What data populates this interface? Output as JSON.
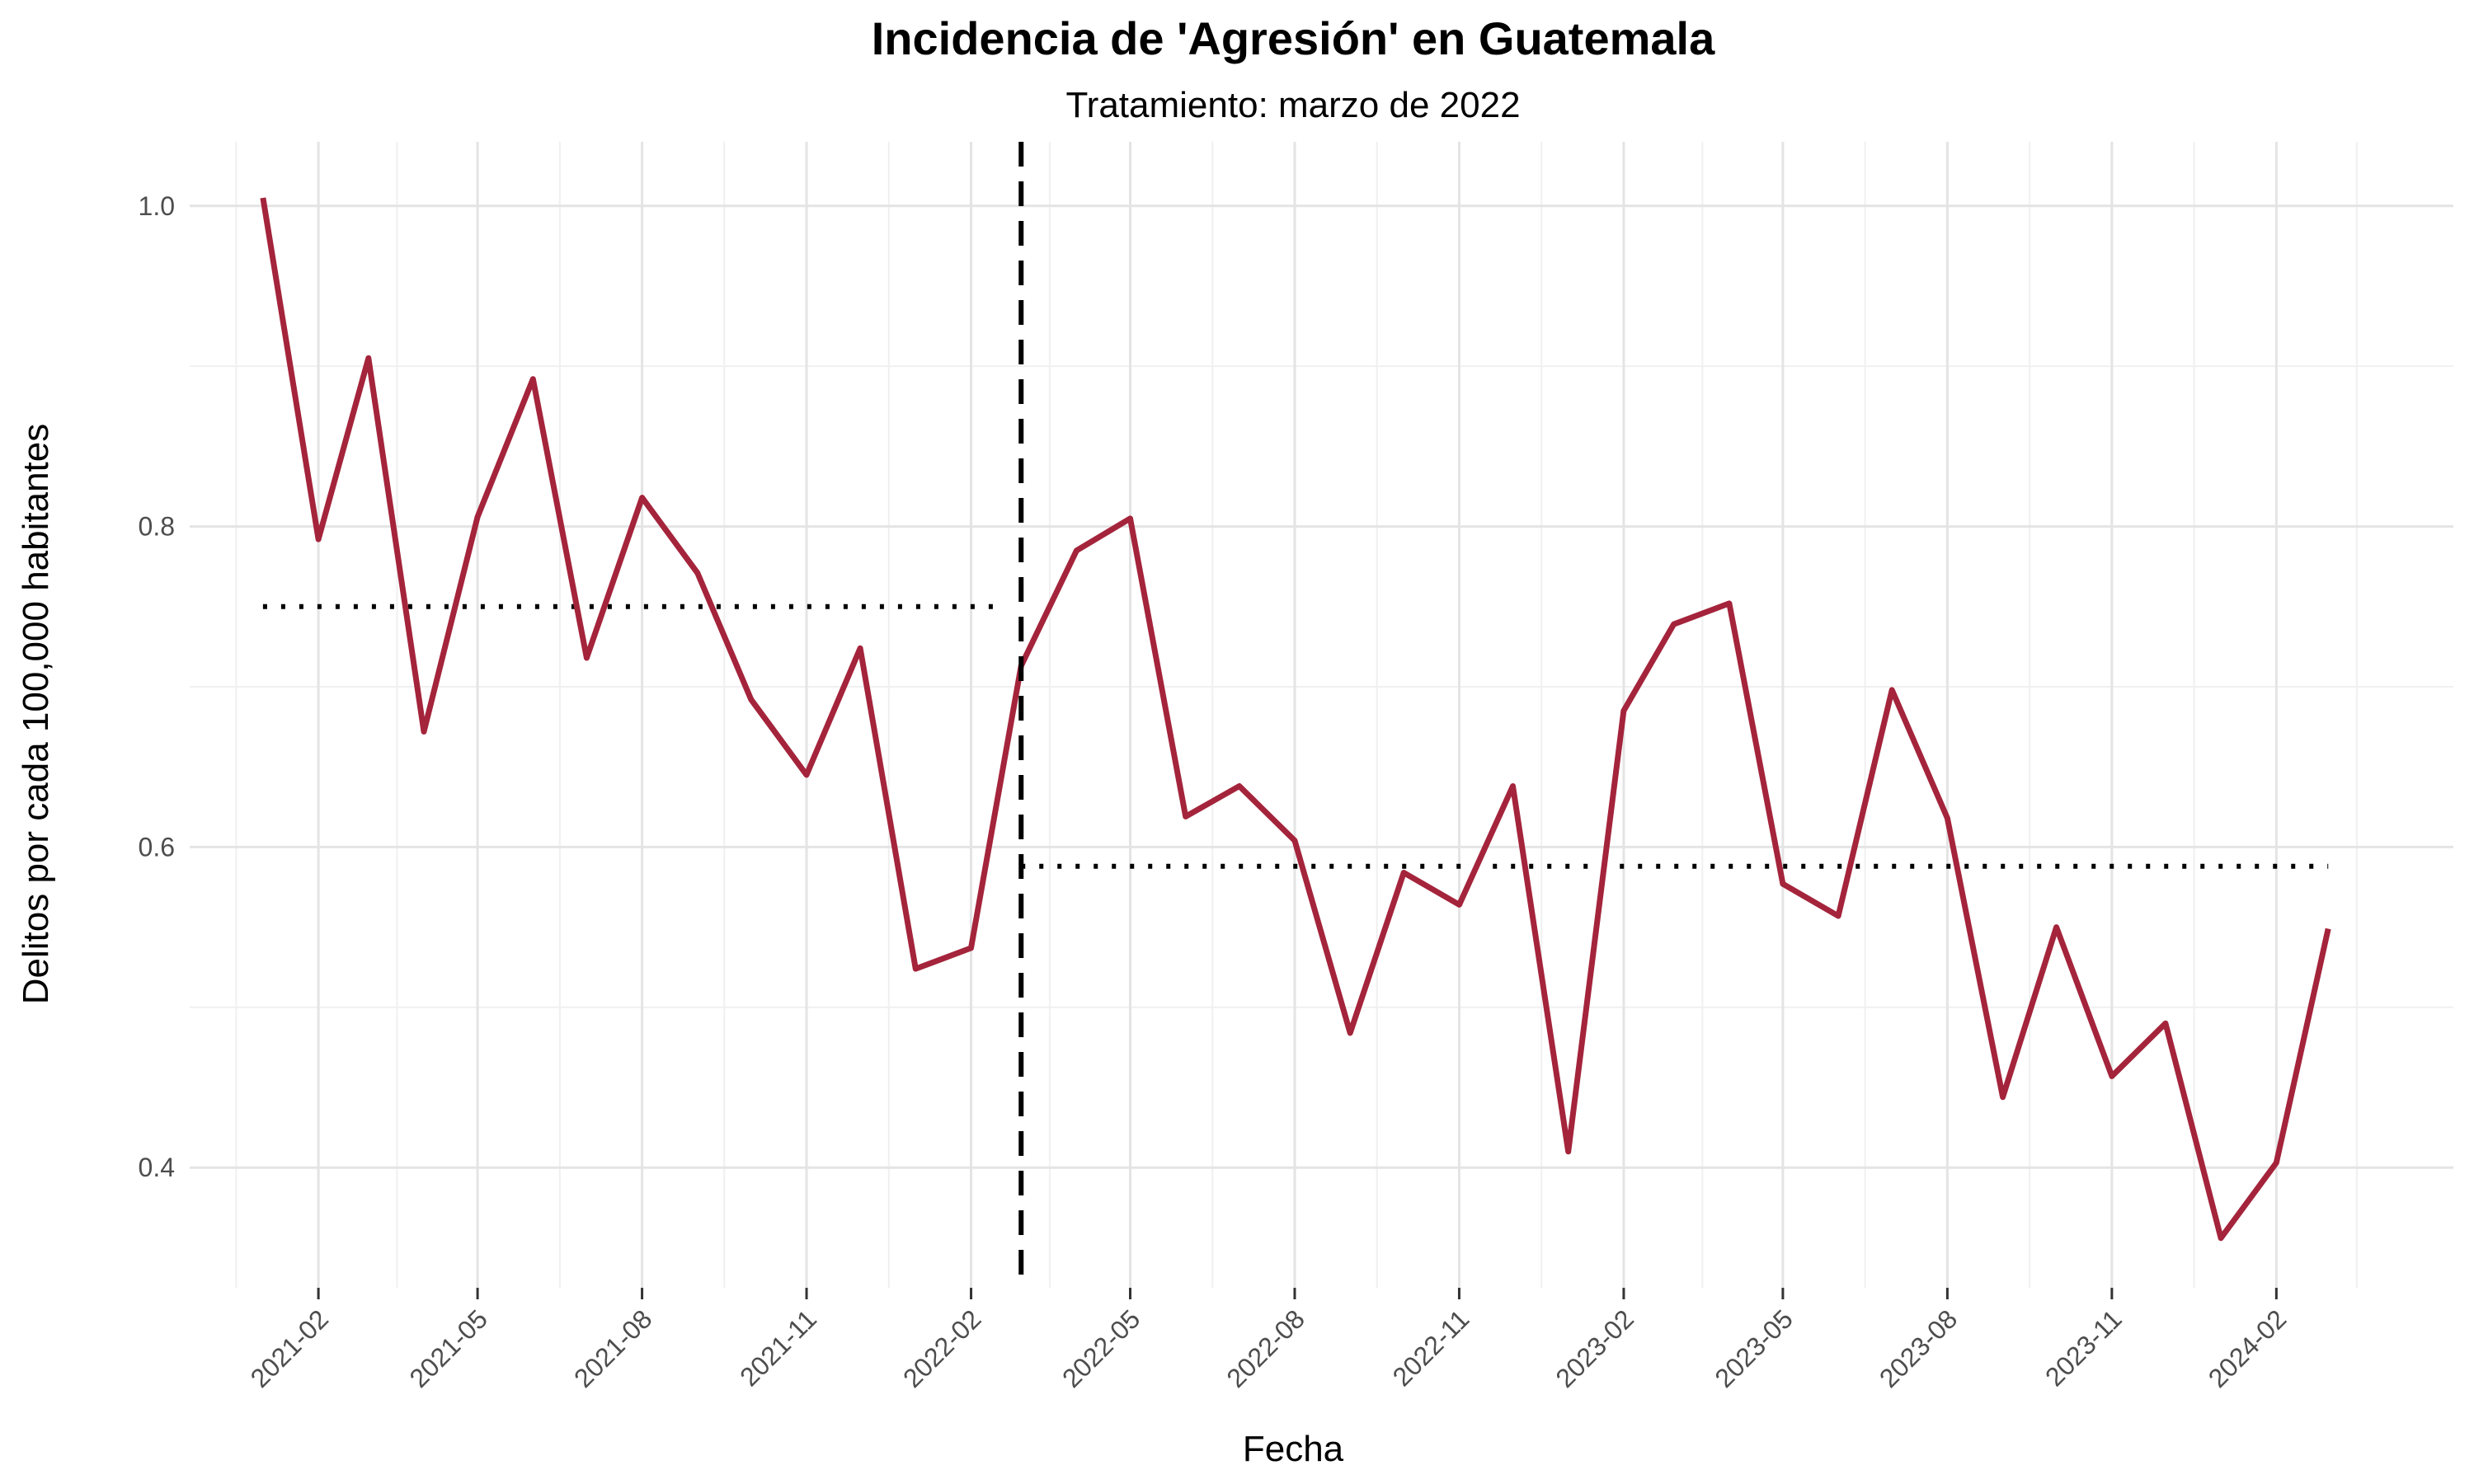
{
  "chart_data": {
    "type": "line",
    "title": "Incidencia de 'Agresión' en Guatemala",
    "subtitle": "Tratamiento: marzo de 2022",
    "xlabel": "Fecha",
    "ylabel": "Delitos por cada 100,000 habitantes",
    "x_tick_labels": [
      "2021-02",
      "2021-05",
      "2021-08",
      "2021-11",
      "2022-02",
      "2022-05",
      "2022-08",
      "2022-11",
      "2023-02",
      "2023-05",
      "2023-08",
      "2023-11",
      "2024-02"
    ],
    "y_tick_labels": [
      "0.4",
      "0.6",
      "0.8",
      "1.0"
    ],
    "ylim": [
      0.325,
      1.04
    ],
    "xlim": [
      "2020-11-21",
      "2024-05-10"
    ],
    "grid": true,
    "series": [
      {
        "color": "#a4243b",
        "x": [
          "2021-01-01",
          "2021-02-01",
          "2021-03-01",
          "2021-04-01",
          "2021-05-01",
          "2021-06-01",
          "2021-07-01",
          "2021-08-01",
          "2021-09-01",
          "2021-10-01",
          "2021-11-01",
          "2021-12-01",
          "2022-01-01",
          "2022-02-01",
          "2022-03-01",
          "2022-04-01",
          "2022-05-01",
          "2022-06-01",
          "2022-07-01",
          "2022-08-01",
          "2022-09-01",
          "2022-10-01",
          "2022-11-01",
          "2022-12-01",
          "2023-01-01",
          "2023-02-01",
          "2023-03-01",
          "2023-04-01",
          "2023-05-01",
          "2023-06-01",
          "2023-07-01",
          "2023-08-01",
          "2023-09-01",
          "2023-10-01",
          "2023-11-01",
          "2023-12-01",
          "2024-01-01",
          "2024-02-01",
          "2024-03-01"
        ],
        "values": [
          1.005,
          0.792,
          0.905,
          0.672,
          0.806,
          0.892,
          0.718,
          0.818,
          0.771,
          0.692,
          0.645,
          0.724,
          0.524,
          0.537,
          0.713,
          0.785,
          0.805,
          0.619,
          0.638,
          0.604,
          0.484,
          0.584,
          0.564,
          0.638,
          0.41,
          0.685,
          0.739,
          0.752,
          0.577,
          0.557,
          0.698,
          0.618,
          0.444,
          0.55,
          0.457,
          0.49,
          0.356,
          0.403,
          0.549
        ]
      }
    ],
    "treatment_line": {
      "x": "2022-03-01",
      "style": "dashed"
    },
    "pre_mean": {
      "value": 0.75,
      "x_start": "2021-01-01",
      "x_end": "2022-02-15",
      "style": "dotted"
    },
    "post_mean": {
      "value": 0.588,
      "x_start": "2022-03-01",
      "x_end": "2024-03-01",
      "style": "dotted"
    }
  }
}
